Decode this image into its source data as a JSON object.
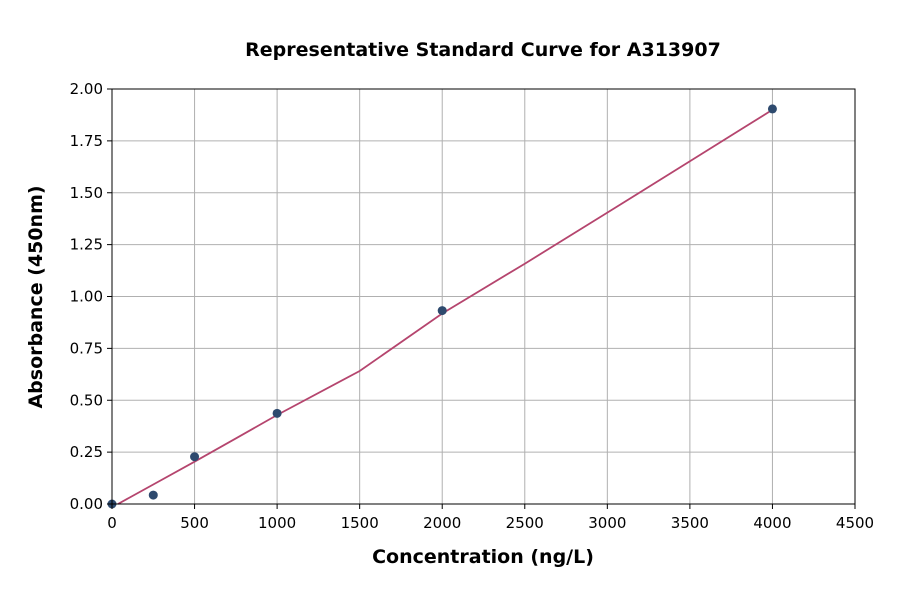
{
  "chart_data": {
    "type": "scatter",
    "title": "Representative Standard Curve for A313907",
    "xlabel": "Concentration (ng/L)",
    "ylabel": "Absorbance (450nm)",
    "xlim": [
      0,
      4500
    ],
    "ylim": [
      0,
      2.0
    ],
    "xticks": [
      0,
      500,
      1000,
      1500,
      2000,
      2500,
      3000,
      3500,
      4000,
      4500
    ],
    "xtick_labels": [
      "0",
      "500",
      "1000",
      "1500",
      "2000",
      "2500",
      "3000",
      "3500",
      "4000",
      "4500"
    ],
    "yticks": [
      0,
      0.25,
      0.5,
      0.75,
      1.0,
      1.25,
      1.5,
      1.75,
      2.0
    ],
    "ytick_labels": [
      "0.00",
      "0.25",
      "0.50",
      "0.75",
      "1.00",
      "1.25",
      "1.50",
      "1.75",
      "2.00"
    ],
    "grid": true,
    "points": {
      "x": [
        0,
        250,
        500,
        1000,
        2000,
        4000
      ],
      "y": [
        0.0,
        0.043,
        0.228,
        0.437,
        0.932,
        1.904
      ],
      "color": "#2e4a6e"
    },
    "fit_curve": {
      "x": [
        36,
        250,
        500,
        750,
        1000,
        1500,
        2000,
        2500,
        3000,
        3500,
        4000
      ],
      "y": [
        0.0,
        0.094,
        0.204,
        0.316,
        0.429,
        0.641,
        0.918,
        1.158,
        1.404,
        1.652,
        1.9
      ],
      "color": "#b5456e"
    }
  }
}
